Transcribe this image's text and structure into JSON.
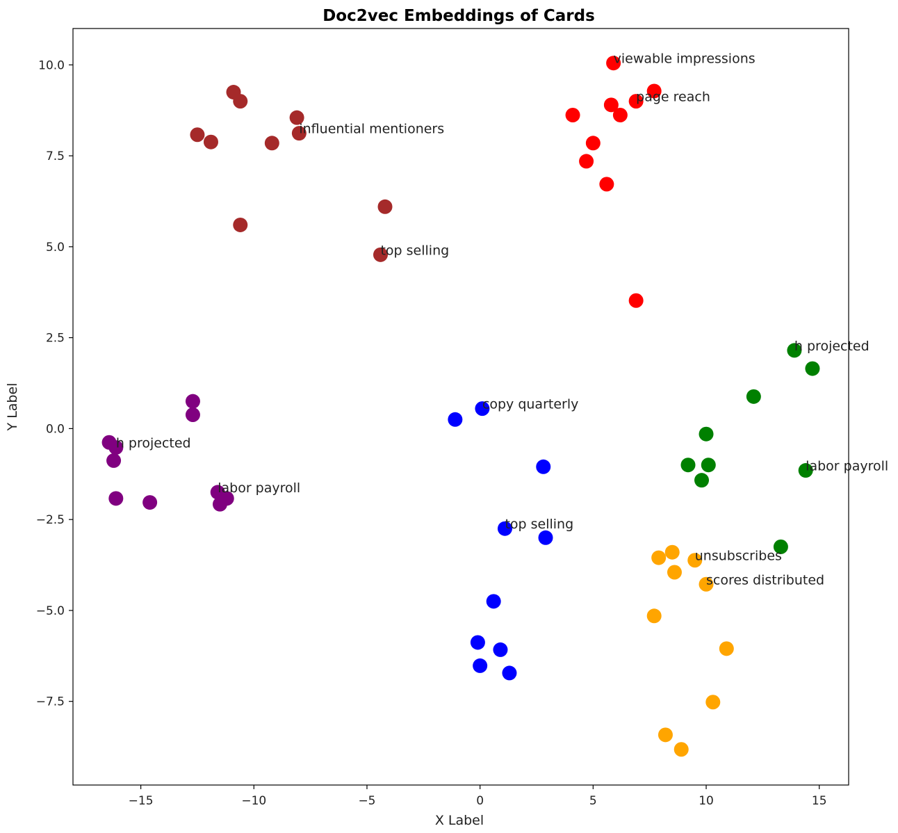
{
  "chart_data": {
    "type": "scatter",
    "title": "Doc2vec Embeddings of Cards",
    "xlabel": "X Label",
    "ylabel": "Y Label",
    "xlim": [
      -18,
      16.3
    ],
    "ylim": [
      -9.8,
      11.0
    ],
    "grid": false,
    "xticks": [
      -15,
      -10,
      -5,
      0,
      5,
      10,
      15
    ],
    "xtick_labels": [
      "−15",
      "−10",
      "−5",
      "0",
      "5",
      "10",
      "15"
    ],
    "yticks": [
      -7.5,
      -5.0,
      -2.5,
      0.0,
      2.5,
      5.0,
      7.5,
      10.0
    ],
    "ytick_labels": [
      "−7.5",
      "−5.0",
      "−2.5",
      "0.0",
      "2.5",
      "5.0",
      "7.5",
      "10.0"
    ],
    "series": [
      {
        "color": "#a52a2a",
        "points": [
          [
            -10.9,
            9.25
          ],
          [
            -10.6,
            9.0
          ],
          [
            -12.5,
            8.08
          ],
          [
            -11.9,
            7.88
          ],
          [
            -9.2,
            7.85
          ],
          [
            -8.1,
            8.55
          ],
          [
            -8.0,
            8.12
          ],
          [
            -4.2,
            6.1
          ],
          [
            -10.6,
            5.6
          ],
          [
            -4.4,
            4.78
          ]
        ]
      },
      {
        "color": "#ff0000",
        "points": [
          [
            5.9,
            10.05
          ],
          [
            7.7,
            9.28
          ],
          [
            5.8,
            8.9
          ],
          [
            6.9,
            9.0
          ],
          [
            4.1,
            8.62
          ],
          [
            6.2,
            8.62
          ],
          [
            5.0,
            7.85
          ],
          [
            4.7,
            7.35
          ],
          [
            5.6,
            6.72
          ],
          [
            6.9,
            3.52
          ]
        ]
      },
      {
        "color": "#008000",
        "points": [
          [
            13.9,
            2.15
          ],
          [
            14.7,
            1.65
          ],
          [
            12.1,
            0.88
          ],
          [
            10.0,
            -0.15
          ],
          [
            9.2,
            -1.0
          ],
          [
            10.1,
            -1.0
          ],
          [
            9.8,
            -1.42
          ],
          [
            14.4,
            -1.15
          ],
          [
            13.3,
            -3.25
          ]
        ]
      },
      {
        "color": "#800080",
        "points": [
          [
            -12.7,
            0.75
          ],
          [
            -12.7,
            0.38
          ],
          [
            -16.4,
            -0.38
          ],
          [
            -16.1,
            -0.52
          ],
          [
            -16.2,
            -0.88
          ],
          [
            -11.6,
            -1.75
          ],
          [
            -11.2,
            -1.92
          ],
          [
            -11.5,
            -2.08
          ],
          [
            -16.1,
            -1.92
          ],
          [
            -14.6,
            -2.03
          ]
        ]
      },
      {
        "color": "#0000ff",
        "points": [
          [
            -1.1,
            0.25
          ],
          [
            0.1,
            0.55
          ],
          [
            2.8,
            -1.05
          ],
          [
            1.1,
            -2.75
          ],
          [
            2.9,
            -3.0
          ],
          [
            0.6,
            -4.75
          ],
          [
            -0.1,
            -5.88
          ],
          [
            0.9,
            -6.08
          ],
          [
            0.0,
            -6.52
          ],
          [
            1.3,
            -6.72
          ]
        ]
      },
      {
        "color": "#ffa500",
        "points": [
          [
            8.5,
            -3.4
          ],
          [
            7.9,
            -3.55
          ],
          [
            9.5,
            -3.62
          ],
          [
            8.6,
            -3.95
          ],
          [
            10.0,
            -4.28
          ],
          [
            7.7,
            -5.15
          ],
          [
            10.9,
            -6.05
          ],
          [
            10.3,
            -7.52
          ],
          [
            8.2,
            -8.42
          ],
          [
            8.9,
            -8.82
          ]
        ]
      }
    ],
    "annotations": [
      {
        "text": "viewable impressions",
        "x": 5.9,
        "y": 10.05
      },
      {
        "text": "page reach",
        "x": 6.9,
        "y": 9.0
      },
      {
        "text": "influential mentioners",
        "x": -8.0,
        "y": 8.12
      },
      {
        "text": "top selling",
        "x": -4.4,
        "y": 4.78
      },
      {
        "text": "h projected",
        "x": 13.9,
        "y": 2.15
      },
      {
        "text": "copy quarterly",
        "x": 0.1,
        "y": 0.55
      },
      {
        "text": "h projected",
        "x": -16.1,
        "y": -0.52
      },
      {
        "text": "labor payroll",
        "x": 14.4,
        "y": -1.15
      },
      {
        "text": "labor payroll",
        "x": -11.6,
        "y": -1.75
      },
      {
        "text": "top selling",
        "x": 1.1,
        "y": -2.75
      },
      {
        "text": "unsubscribes",
        "x": 9.5,
        "y": -3.62
      },
      {
        "text": "scores distributed",
        "x": 10.0,
        "y": -4.28
      }
    ]
  }
}
